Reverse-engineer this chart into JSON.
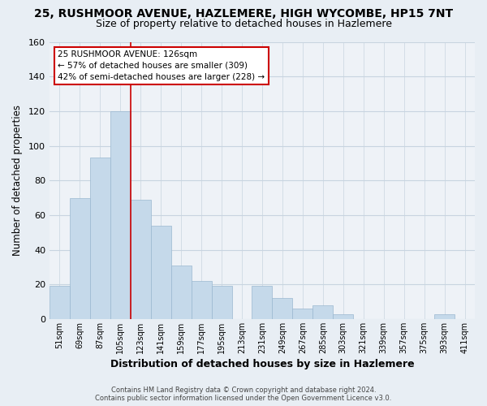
{
  "title": "25, RUSHMOOR AVENUE, HAZLEMERE, HIGH WYCOMBE, HP15 7NT",
  "subtitle": "Size of property relative to detached houses in Hazlemere",
  "xlabel": "Distribution of detached houses by size in Hazlemere",
  "ylabel": "Number of detached properties",
  "bar_labels": [
    "51sqm",
    "69sqm",
    "87sqm",
    "105sqm",
    "123sqm",
    "141sqm",
    "159sqm",
    "177sqm",
    "195sqm",
    "213sqm",
    "231sqm",
    "249sqm",
    "267sqm",
    "285sqm",
    "303sqm",
    "321sqm",
    "339sqm",
    "357sqm",
    "375sqm",
    "393sqm",
    "411sqm"
  ],
  "bar_values": [
    19,
    70,
    93,
    120,
    69,
    54,
    31,
    22,
    19,
    0,
    19,
    12,
    6,
    8,
    3,
    0,
    0,
    0,
    0,
    3,
    0
  ],
  "bar_color": "#c5d9ea",
  "bar_edge_color": "#9ab8d0",
  "highlight_line_color": "#cc0000",
  "annotation_title": "25 RUSHMOOR AVENUE: 126sqm",
  "annotation_line1": "← 57% of detached houses are smaller (309)",
  "annotation_line2": "42% of semi-detached houses are larger (228) →",
  "annotation_box_facecolor": "#ffffff",
  "annotation_box_edgecolor": "#cc0000",
  "ylim": [
    0,
    160
  ],
  "yticks": [
    0,
    20,
    40,
    60,
    80,
    100,
    120,
    140,
    160
  ],
  "footer_line1": "Contains HM Land Registry data © Crown copyright and database right 2024.",
  "footer_line2": "Contains public sector information licensed under the Open Government Licence v3.0.",
  "background_color": "#e8eef4",
  "plot_background_color": "#eef2f7",
  "grid_color": "#c8d4e0",
  "title_fontsize": 10,
  "subtitle_fontsize": 9
}
